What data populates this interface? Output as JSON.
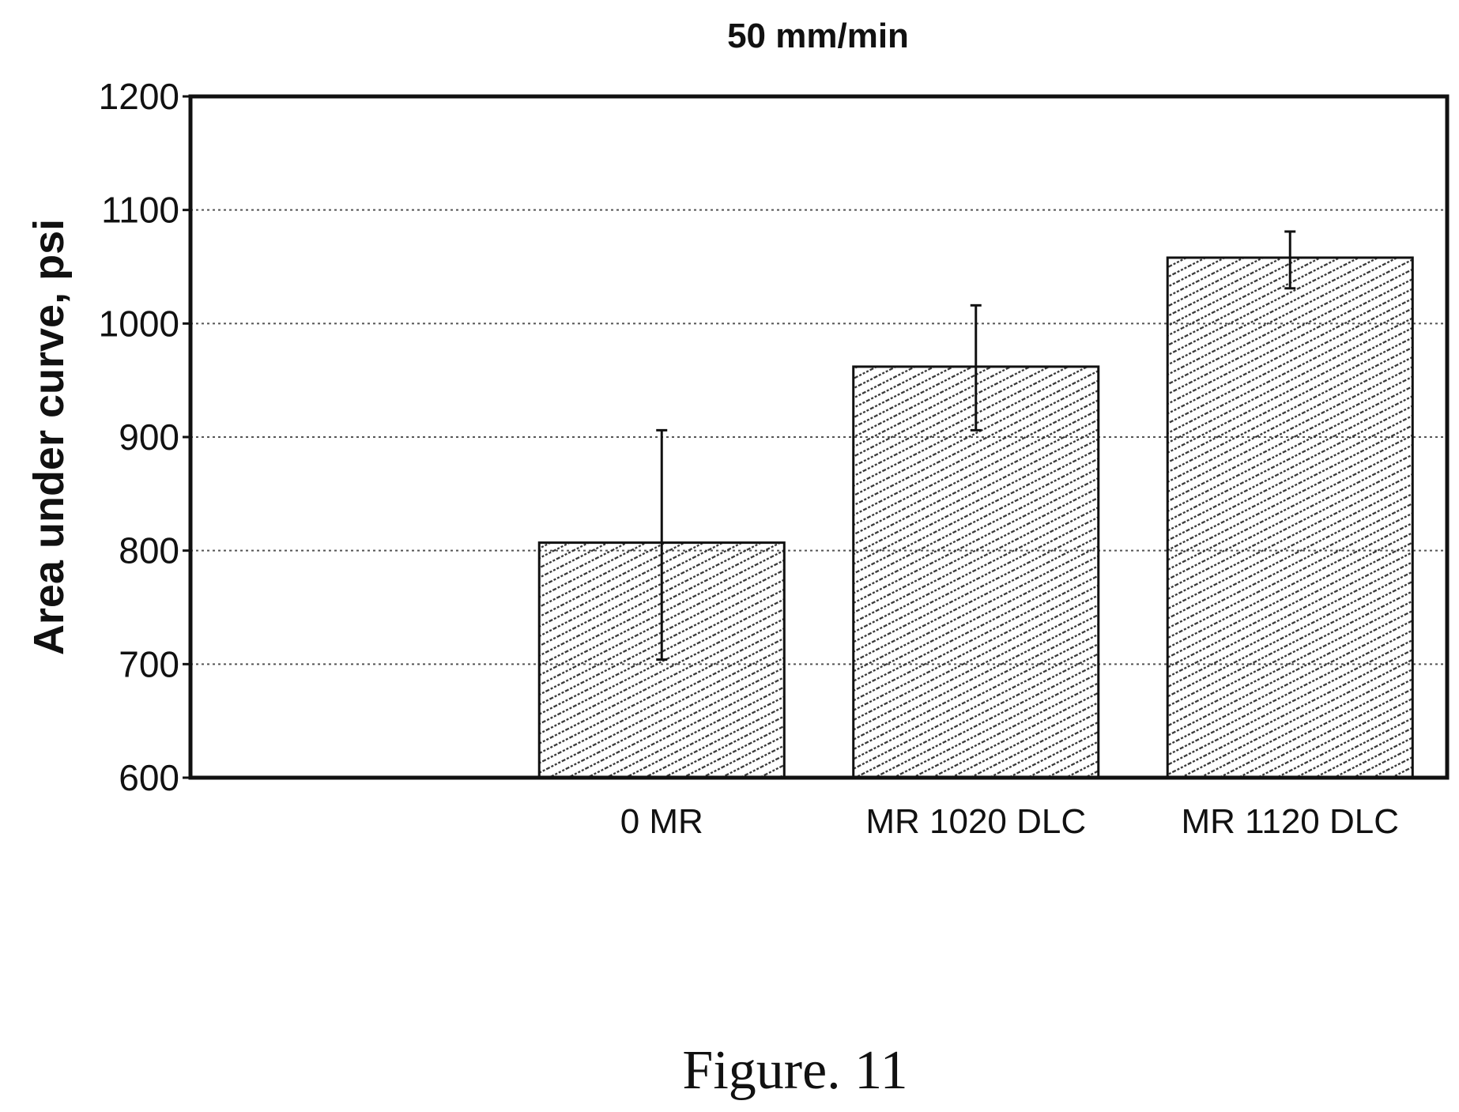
{
  "chart_data": {
    "type": "bar",
    "title": "50 mm/min",
    "xlabel": "",
    "ylabel": "Area under curve, psi",
    "ylim": [
      600,
      1200
    ],
    "yticks": [
      600,
      700,
      800,
      900,
      1000,
      1100,
      1200
    ],
    "grid": true,
    "legend": "none",
    "categories": [
      "",
      "0 MR",
      "MR 1020 DLC",
      "MR 1120 DLC"
    ],
    "values": [
      null,
      807,
      962,
      1058
    ],
    "error_low": [
      null,
      704,
      906,
      1031
    ],
    "error_high": [
      null,
      906,
      1016,
      1081
    ],
    "bar_fill": "diagonal-hatch",
    "colors": {
      "ink": "#111111",
      "grid": "#555555",
      "hatch": "#333333",
      "background": "#ffffff"
    }
  },
  "caption": "Figure. 11"
}
